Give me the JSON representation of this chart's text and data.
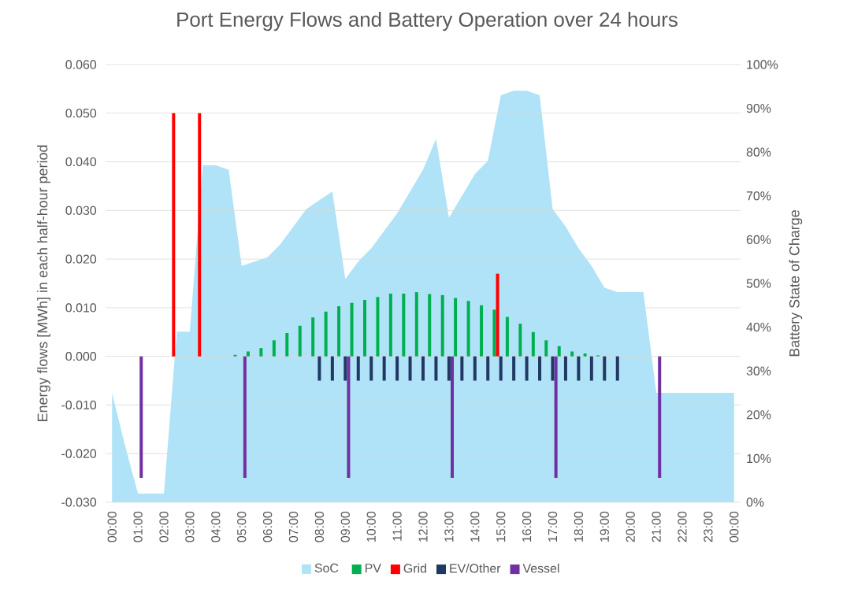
{
  "chart_data": {
    "type": "bar",
    "title": "Port Energy Flows and Battery Operation over 24 hours",
    "ylabel": "Energy flows [MWh] in each half-hour period",
    "y2label": "Battery State of Charge",
    "categories": [
      "00:00",
      null,
      "01:00",
      null,
      "02:00",
      null,
      "03:00",
      null,
      "04:00",
      null,
      "05:00",
      null,
      "06:00",
      null,
      "07:00",
      null,
      "08:00",
      null,
      "09:00",
      null,
      "10:00",
      null,
      "11:00",
      null,
      "12:00",
      null,
      "13:00",
      null,
      "14:00",
      null,
      "15:00",
      null,
      "16:00",
      null,
      "17:00",
      null,
      "18:00",
      null,
      "19:00",
      null,
      "20:00",
      null,
      "21:00",
      null,
      "22:00",
      null,
      "23:00",
      null,
      "00:00"
    ],
    "series": [
      {
        "name": "SoC",
        "type": "area",
        "axis": "y2",
        "color": "#b0e3f7",
        "values": [
          25,
          13,
          2,
          2,
          2,
          39,
          39,
          77,
          77,
          76,
          54,
          55,
          56,
          59,
          63,
          67,
          69,
          71,
          51,
          55,
          58,
          62,
          66,
          71,
          76,
          83,
          65,
          70,
          75,
          78,
          93,
          94,
          94,
          93,
          67,
          63,
          58,
          54,
          49,
          48,
          48,
          48,
          25,
          25,
          25,
          25,
          25,
          25,
          25
        ]
      },
      {
        "name": "PV",
        "color": "#00b050",
        "values": [
          null,
          null,
          null,
          null,
          null,
          null,
          null,
          null,
          null,
          null,
          0.0003,
          0.001,
          0.0017,
          0.0033,
          0.0048,
          0.0063,
          0.008,
          0.0092,
          0.0103,
          0.011,
          0.0116,
          0.0122,
          0.0129,
          0.0129,
          0.0132,
          0.0128,
          0.0126,
          0.012,
          0.0114,
          0.0105,
          0.0096,
          0.0081,
          0.0067,
          0.005,
          0.0033,
          0.0021,
          0.001,
          0.0006,
          0.0002,
          null,
          null,
          null,
          null,
          null,
          null,
          null,
          null,
          null,
          null
        ]
      },
      {
        "name": "Grid",
        "color": "#ff0000",
        "values": [
          null,
          null,
          null,
          null,
          null,
          0.05,
          null,
          0.05,
          null,
          null,
          null,
          null,
          null,
          null,
          null,
          null,
          null,
          null,
          null,
          null,
          null,
          null,
          null,
          null,
          null,
          null,
          null,
          null,
          null,
          null,
          0.017,
          null,
          null,
          null,
          null,
          null,
          null,
          null,
          null,
          null,
          null,
          null,
          null,
          null,
          null,
          null,
          null,
          null,
          null
        ]
      },
      {
        "name": "EV/Other",
        "color": "#203864",
        "values": [
          null,
          null,
          null,
          null,
          null,
          null,
          null,
          null,
          null,
          null,
          null,
          null,
          null,
          null,
          null,
          null,
          -0.005,
          -0.005,
          -0.005,
          -0.005,
          -0.005,
          -0.005,
          -0.005,
          -0.005,
          -0.005,
          -0.005,
          -0.005,
          -0.005,
          -0.005,
          -0.005,
          -0.005,
          -0.005,
          -0.005,
          -0.005,
          -0.005,
          -0.005,
          -0.005,
          -0.005,
          -0.005,
          -0.005,
          null,
          null,
          null,
          null,
          null,
          null,
          null,
          null,
          null
        ]
      },
      {
        "name": "Vessel",
        "color": "#7030a0",
        "values": [
          null,
          null,
          -0.025,
          null,
          null,
          null,
          null,
          null,
          null,
          null,
          -0.025,
          null,
          null,
          null,
          null,
          null,
          null,
          null,
          -0.025,
          null,
          null,
          null,
          null,
          null,
          null,
          null,
          -0.025,
          null,
          null,
          null,
          null,
          null,
          null,
          null,
          -0.025,
          null,
          null,
          null,
          null,
          null,
          null,
          null,
          -0.025,
          null,
          null,
          null,
          null,
          null,
          null
        ]
      }
    ],
    "ylim": [
      -0.03,
      0.06
    ],
    "yticks": [
      {
        "value": -0.03,
        "label": "-0.030"
      },
      {
        "value": -0.02,
        "label": "-0.020"
      },
      {
        "value": -0.01,
        "label": "-0.010"
      },
      {
        "value": 0,
        "label": "0.000"
      },
      {
        "value": 0.01,
        "label": "0.010"
      },
      {
        "value": 0.02,
        "label": "0.020"
      },
      {
        "value": 0.03,
        "label": "0.030"
      },
      {
        "value": 0.04,
        "label": "0.040"
      },
      {
        "value": 0.05,
        "label": "0.050"
      },
      {
        "value": 0.06,
        "label": "0.060"
      }
    ],
    "y2lim": [
      0,
      100
    ],
    "y2ticks": [
      {
        "value": 0,
        "label": "0%"
      },
      {
        "value": 10,
        "label": "10%"
      },
      {
        "value": 20,
        "label": "20%"
      },
      {
        "value": 30,
        "label": "30%"
      },
      {
        "value": 40,
        "label": "40%"
      },
      {
        "value": 50,
        "label": "50%"
      },
      {
        "value": 60,
        "label": "60%"
      },
      {
        "value": 70,
        "label": "70%"
      },
      {
        "value": 80,
        "label": "80%"
      },
      {
        "value": 90,
        "label": "90%"
      },
      {
        "value": 100,
        "label": "100%"
      }
    ],
    "grid": "y",
    "legend": "bottom"
  }
}
